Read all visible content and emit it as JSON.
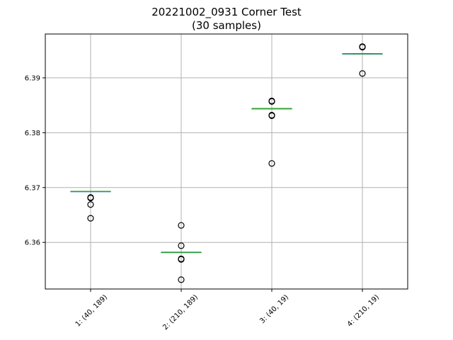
{
  "chart_data": {
    "type": "box",
    "title": "20221002_0931 Corner Test",
    "subtitle": "(30 samples)",
    "xlabel": "",
    "ylabel": "",
    "categories": [
      "1: (40, 189)",
      "2: (210, 189)",
      "3: (40, 19)",
      "4: (210, 19)"
    ],
    "ylim": [
      6.3515,
      6.398
    ],
    "yticks": [
      6.36,
      6.37,
      6.38,
      6.39
    ],
    "grid": true,
    "colors": {
      "median": "#2ca02c",
      "box": "#1f77b4",
      "flier": "#000000",
      "grid": "#b0b0b0"
    },
    "boxes": [
      {
        "category": "1: (40, 189)",
        "median": 6.3693,
        "q1": 6.3693,
        "q3": 6.3693,
        "whisker_low": 6.3693,
        "whisker_high": 6.3693,
        "outliers": [
          6.3682,
          6.3681,
          6.3669,
          6.3644
        ]
      },
      {
        "category": "2: (210, 189)",
        "median": 6.3582,
        "q1": 6.3582,
        "q3": 6.3582,
        "whisker_low": 6.3582,
        "whisker_high": 6.3582,
        "outliers": [
          6.3631,
          6.3594,
          6.357,
          6.3569,
          6.3532
        ]
      },
      {
        "category": "3: (40, 19)",
        "median": 6.3844,
        "q1": 6.3844,
        "q3": 6.3844,
        "whisker_low": 6.3844,
        "whisker_high": 6.3844,
        "outliers": [
          6.3858,
          6.3857,
          6.3832,
          6.3831,
          6.3744
        ]
      },
      {
        "category": "4: (210, 19)",
        "median": 6.3944,
        "q1": 6.3944,
        "q3": 6.3944,
        "whisker_low": 6.3944,
        "whisker_high": 6.3944,
        "outliers": [
          6.3957,
          6.3956,
          6.3908
        ]
      }
    ]
  }
}
